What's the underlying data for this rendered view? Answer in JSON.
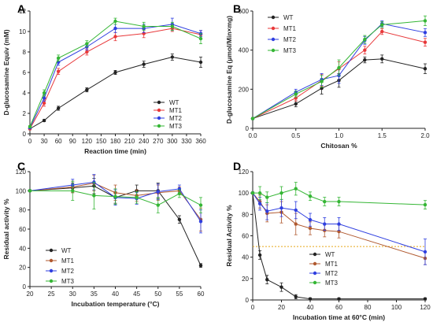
{
  "colors": {
    "WT": "#222222",
    "MT1": "#e8383a",
    "MT2": "#2f3fe0",
    "MT3": "#35b635",
    "C_MT1": "#b0592f",
    "ref": "#e6a817"
  },
  "chart_data": [
    {
      "panel": "A",
      "type": "line",
      "xlabel": "Reaction time (min)",
      "ylabel": "D-glucosamine Equiv (mM)",
      "xlim": [
        0,
        360
      ],
      "ylim": [
        0,
        12
      ],
      "xticks": [
        0,
        30,
        60,
        90,
        120,
        150,
        180,
        210,
        240,
        270,
        300,
        330,
        360
      ],
      "yticks": [
        0,
        2,
        4,
        6,
        8,
        10,
        12
      ],
      "legend": "bottom-right",
      "grid": false,
      "series": [
        {
          "name": "WT",
          "color": "#222222",
          "x": [
            0,
            30,
            60,
            120,
            180,
            240,
            300,
            360
          ],
          "y": [
            0.5,
            1.3,
            2.5,
            4.3,
            6.0,
            6.8,
            7.5,
            7.0
          ],
          "err": [
            0.1,
            0.1,
            0.2,
            0.2,
            0.2,
            0.3,
            0.3,
            0.5
          ]
        },
        {
          "name": "MT1",
          "color": "#e8383a",
          "x": [
            0,
            30,
            60,
            120,
            180,
            240,
            300,
            360
          ],
          "y": [
            0.5,
            3.0,
            6.1,
            8.0,
            9.5,
            9.8,
            10.3,
            9.7
          ],
          "err": [
            0.1,
            0.3,
            0.3,
            0.3,
            0.4,
            0.4,
            0.3,
            0.4
          ]
        },
        {
          "name": "MT2",
          "color": "#2f3fe0",
          "x": [
            0,
            30,
            60,
            120,
            180,
            240,
            300,
            360
          ],
          "y": [
            0.6,
            3.5,
            7.0,
            8.5,
            10.3,
            10.3,
            10.7,
            9.8
          ],
          "err": [
            0.1,
            0.3,
            0.3,
            0.3,
            0.4,
            0.4,
            0.6,
            0.3
          ]
        },
        {
          "name": "MT3",
          "color": "#35b635",
          "x": [
            0,
            30,
            60,
            120,
            180,
            240,
            300,
            360
          ],
          "y": [
            0.7,
            4.0,
            7.4,
            8.8,
            11.0,
            10.5,
            10.5,
            9.3
          ],
          "err": [
            0.1,
            0.3,
            0.3,
            0.3,
            0.3,
            0.4,
            0.4,
            0.5
          ]
        }
      ]
    },
    {
      "panel": "B",
      "type": "line",
      "xlabel": "Chitosan %",
      "ylabel": "D-glucosamine Eq (μmol/Min×mg)",
      "xlim": [
        0,
        2
      ],
      "ylim": [
        0,
        600
      ],
      "xticks": [
        0.0,
        0.5,
        1.0,
        1.5,
        2.0
      ],
      "yticks": [
        0,
        200,
        400,
        600
      ],
      "legend": "top-left",
      "grid": false,
      "series": [
        {
          "name": "WT",
          "color": "#222222",
          "x": [
            0,
            0.5,
            0.8,
            1.0,
            1.3,
            1.5,
            2.0
          ],
          "y": [
            50,
            125,
            205,
            245,
            350,
            355,
            305
          ],
          "err": [
            5,
            15,
            30,
            35,
            15,
            20,
            25
          ]
        },
        {
          "name": "MT1",
          "color": "#e8383a",
          "x": [
            0,
            0.5,
            0.8,
            1.0,
            1.3,
            1.5,
            2.0
          ],
          "y": [
            50,
            155,
            245,
            305,
            400,
            495,
            440
          ],
          "err": [
            5,
            15,
            30,
            35,
            20,
            15,
            20
          ]
        },
        {
          "name": "MT2",
          "color": "#2f3fe0",
          "x": [
            0,
            0.5,
            0.8,
            1.0,
            1.3,
            1.5,
            2.0
          ],
          "y": [
            50,
            185,
            250,
            270,
            450,
            535,
            490
          ],
          "err": [
            5,
            15,
            30,
            40,
            20,
            15,
            20
          ]
        },
        {
          "name": "MT3",
          "color": "#35b635",
          "x": [
            0,
            0.5,
            0.8,
            1.0,
            1.3,
            1.5,
            2.0
          ],
          "y": [
            50,
            175,
            240,
            310,
            455,
            530,
            550
          ],
          "err": [
            5,
            15,
            30,
            40,
            20,
            15,
            25
          ]
        }
      ]
    },
    {
      "panel": "C",
      "type": "line",
      "xlabel": "Incubation temperature (°C)",
      "ylabel": "Residual activity %",
      "xlim": [
        20,
        60
      ],
      "ylim": [
        0,
        120
      ],
      "xticks": [
        20,
        25,
        30,
        35,
        40,
        45,
        50,
        55,
        60
      ],
      "yticks": [
        0,
        20,
        40,
        60,
        80,
        100,
        120
      ],
      "legend": "bottom-left",
      "grid": false,
      "series": [
        {
          "name": "WT",
          "color": "#222222",
          "x": [
            20,
            30,
            35,
            40,
            45,
            50,
            55,
            60
          ],
          "y": [
            100,
            103,
            105,
            93,
            100,
            100,
            70,
            22
          ],
          "err": [
            1,
            5,
            8,
            6,
            6,
            8,
            4,
            2
          ]
        },
        {
          "name": "MT1",
          "color": "#b0592f",
          "x": [
            20,
            30,
            35,
            40,
            45,
            50,
            55,
            60
          ],
          "y": [
            100,
            104,
            108,
            98,
            95,
            98,
            100,
            70
          ],
          "err": [
            1,
            6,
            8,
            8,
            6,
            8,
            4,
            12
          ]
        },
        {
          "name": "MT2",
          "color": "#2f3fe0",
          "x": [
            20,
            30,
            35,
            40,
            45,
            50,
            55,
            60
          ],
          "y": [
            100,
            106,
            109,
            93,
            92,
            99,
            102,
            68
          ],
          "err": [
            1,
            6,
            8,
            8,
            6,
            8,
            4,
            12
          ]
        },
        {
          "name": "MT3",
          "color": "#35b635",
          "x": [
            20,
            30,
            35,
            40,
            45,
            50,
            55,
            60
          ],
          "y": [
            100,
            100,
            95,
            94,
            93,
            85,
            97,
            85
          ],
          "err": [
            1,
            10,
            14,
            8,
            6,
            8,
            4,
            8
          ]
        }
      ]
    },
    {
      "panel": "D",
      "type": "line",
      "xlabel": "Incubation time at 60°C (min)",
      "ylabel": "Residual Activity %",
      "xlim": [
        0,
        120
      ],
      "ylim": [
        0,
        120
      ],
      "xticks": [
        0,
        20,
        40,
        60,
        80,
        100,
        120
      ],
      "yticks": [
        0,
        20,
        40,
        60,
        80,
        100,
        120
      ],
      "legend": "bottom-center",
      "grid": false,
      "reference_line_y": 50,
      "series": [
        {
          "name": "WT",
          "color": "#222222",
          "x": [
            0,
            5,
            10,
            20,
            30,
            40,
            60,
            120
          ],
          "y": [
            100,
            42,
            19,
            12,
            3,
            1,
            1,
            1
          ],
          "err": [
            1,
            4,
            4,
            4,
            2,
            1,
            1,
            1
          ]
        },
        {
          "name": "MT1",
          "color": "#b0592f",
          "x": [
            0,
            5,
            10,
            20,
            30,
            40,
            50,
            60,
            120
          ],
          "y": [
            100,
            92,
            81,
            82,
            71,
            67,
            65,
            64,
            39
          ],
          "err": [
            1,
            6,
            8,
            10,
            10,
            6,
            6,
            6,
            6
          ]
        },
        {
          "name": "MT2",
          "color": "#2f3fe0",
          "x": [
            0,
            5,
            10,
            20,
            30,
            40,
            50,
            60,
            120
          ],
          "y": [
            100,
            90,
            83,
            86,
            84,
            75,
            71,
            71,
            45
          ],
          "err": [
            1,
            6,
            8,
            8,
            8,
            6,
            6,
            6,
            12
          ]
        },
        {
          "name": "MT3",
          "color": "#35b635",
          "x": [
            0,
            5,
            10,
            20,
            30,
            40,
            50,
            60,
            120
          ],
          "y": [
            100,
            100,
            96,
            100,
            104,
            97,
            92,
            92,
            89
          ],
          "err": [
            1,
            6,
            5,
            6,
            6,
            4,
            4,
            4,
            4
          ]
        }
      ]
    }
  ]
}
